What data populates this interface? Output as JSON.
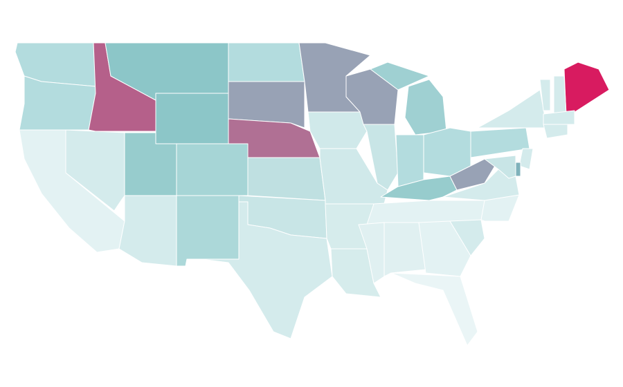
{
  "map": {
    "regions": [
      {
        "color": "#b3dcde"
      },
      {
        "color": "#b3dcde"
      },
      {
        "color": "#e3f2f3"
      },
      {
        "color": "#d4ebec"
      },
      {
        "color": "#b5608a"
      },
      {
        "color": "#8cc6c8"
      },
      {
        "color": "#8cc6c8"
      },
      {
        "color": "#97cccd"
      },
      {
        "color": "#a6d5d6"
      },
      {
        "color": "#d4ebec"
      },
      {
        "color": "#acd8d9"
      },
      {
        "color": "#b3dcde"
      },
      {
        "color": "#98a2b5"
      },
      {
        "color": "#b07094"
      },
      {
        "color": "#bfe0e1"
      },
      {
        "color": "#c8e5e6"
      },
      {
        "color": "#d4ebec"
      },
      {
        "color": "#98a2b5"
      },
      {
        "color": "#d0e9ea"
      },
      {
        "color": "#d0e9ea"
      },
      {
        "color": "#d6ecec"
      },
      {
        "color": "#d6ecec"
      },
      {
        "color": "#98a2b5"
      },
      {
        "color": "#c8e5e6"
      },
      {
        "color": "#9fd0d2"
      },
      {
        "color": "#9fd0d2"
      },
      {
        "color": "#b3dcde"
      },
      {
        "color": "#b3dcde"
      },
      {
        "color": "#97cccd"
      },
      {
        "color": "#e3f2f3"
      },
      {
        "color": "#e0f0f1"
      },
      {
        "color": "#e0f0f1"
      },
      {
        "color": "#e3f2f3"
      },
      {
        "color": "#eaf5f6"
      },
      {
        "color": "#d4ebec"
      },
      {
        "color": "#e3f2f3"
      },
      {
        "color": "#d4ebec"
      },
      {
        "color": "#98a2b5"
      },
      {
        "color": "#b3dcde"
      },
      {
        "color": "#d4ebec"
      },
      {
        "color": "#d81b60"
      },
      {
        "color": "#d4ebec"
      },
      {
        "color": "#d4ebec"
      },
      {
        "color": "#d4ebec"
      },
      {
        "color": "#d4ebec"
      },
      {
        "color": "#d4ebec"
      },
      {
        "color": "#7fb2bb"
      },
      {
        "color": "#c8e5e6"
      }
    ]
  }
}
